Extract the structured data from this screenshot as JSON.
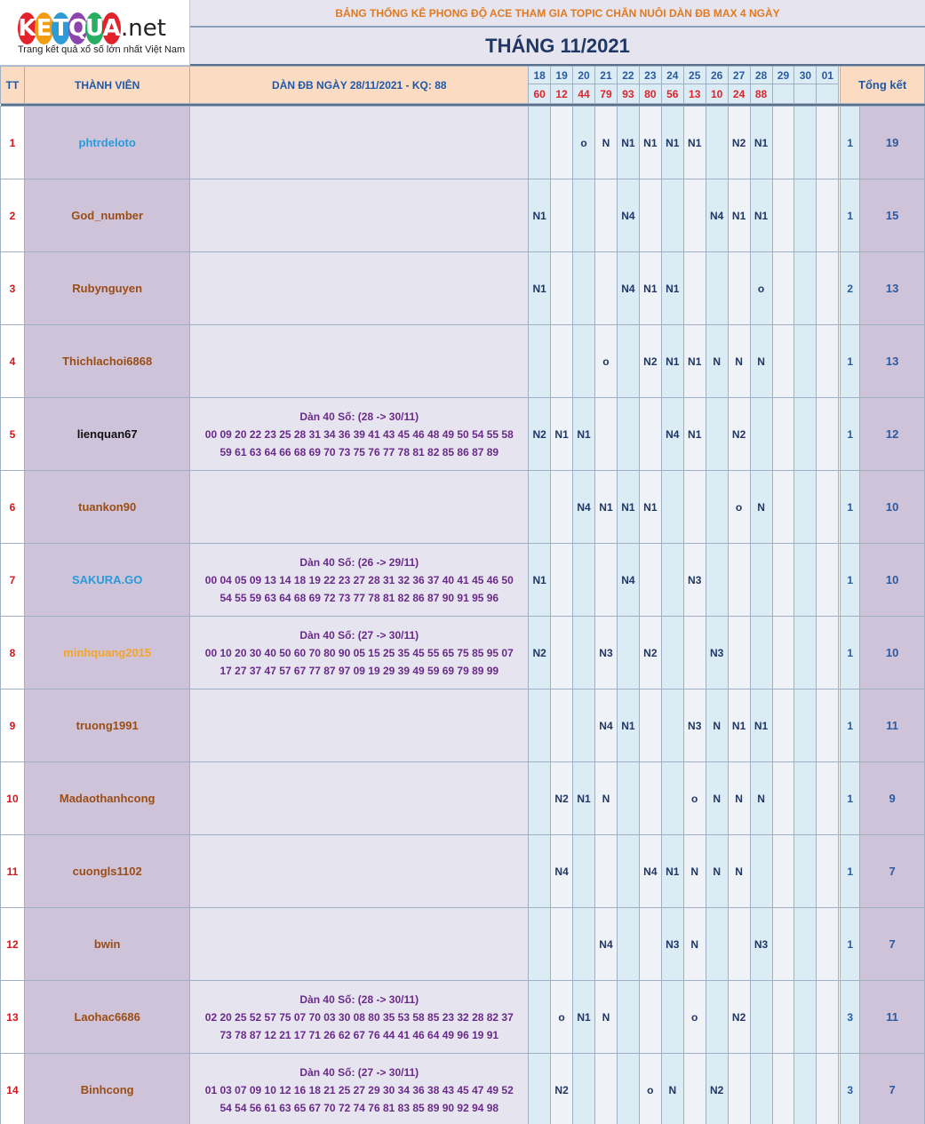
{
  "logo": {
    "letters": [
      "K",
      "E",
      "T",
      "Q",
      "U",
      "A"
    ],
    "letter_colors": [
      "#e2232b",
      "#f39c12",
      "#2e9bd6",
      "#8e44ad",
      "#27ae60",
      "#e2232b"
    ],
    "suffix": ".net",
    "tagline": "Trang kết quả xổ số lớn nhất Việt Nam"
  },
  "title": "BẢNG THỐNG KÊ PHONG ĐỘ ACE THAM GIA TOPIC CHĂN NUÔI DÀN ĐB MAX 4 NGÀY",
  "month": "THÁNG 11/2021",
  "headers": {
    "tt": "TT",
    "member": "THÀNH VIÊN",
    "dan": "DÀN ĐB NGÀY 28/11/2021 - KQ: 88",
    "summary": "Tổng kết"
  },
  "days": [
    "18",
    "19",
    "20",
    "21",
    "22",
    "23",
    "24",
    "25",
    "26",
    "27",
    "28",
    "29",
    "30",
    "01"
  ],
  "results": [
    "60",
    "12",
    "44",
    "79",
    "93",
    "80",
    "56",
    "13",
    "10",
    "24",
    "88",
    "",
    "",
    ""
  ],
  "member_colors": {
    "blue": "#2a9ad8",
    "brown": "#9a4d15",
    "black": "#111111",
    "orange": "#f2a52a"
  },
  "rows": [
    {
      "tt": "1",
      "name": "phtrdeloto",
      "color": "blue",
      "dan_title": "",
      "dan_lines": [],
      "cells": [
        "",
        "",
        "o",
        "N",
        "N1",
        "N1",
        "N1",
        "N1",
        "",
        "N2",
        "N1",
        "",
        "",
        ""
      ],
      "s1": "1",
      "s2": "19"
    },
    {
      "tt": "2",
      "name": "God_number",
      "color": "brown",
      "dan_title": "",
      "dan_lines": [],
      "cells": [
        "N1",
        "",
        "",
        "",
        "N4",
        "",
        "",
        "",
        "N4",
        "N1",
        "N1",
        "",
        "",
        ""
      ],
      "s1": "1",
      "s2": "15"
    },
    {
      "tt": "3",
      "name": "Rubynguyen",
      "color": "brown",
      "dan_title": "",
      "dan_lines": [],
      "cells": [
        "N1",
        "",
        "",
        "",
        "N4",
        "N1",
        "N1",
        "",
        "",
        "",
        "o",
        "",
        "",
        ""
      ],
      "s1": "2",
      "s2": "13"
    },
    {
      "tt": "4",
      "name": "Thichlachoi6868",
      "color": "brown",
      "dan_title": "",
      "dan_lines": [],
      "cells": [
        "",
        "",
        "",
        "o",
        "",
        "N2",
        "N1",
        "N1",
        "N",
        "N",
        "N",
        "",
        "",
        ""
      ],
      "s1": "1",
      "s2": "13"
    },
    {
      "tt": "5",
      "name": "lienquan67",
      "color": "black",
      "dan_title": "Dàn 40 Số: (28 -> 30/11)",
      "dan_lines": [
        "00 09 20 22 23 25 28 31 34 36 39 41 43 45 46 48 49 50 54 55 58",
        "59 61 63 64 66 68 69 70 73 75 76 77 78 81 82 85 86 87 89"
      ],
      "cells": [
        "N2",
        "N1",
        "N1",
        "",
        "",
        "",
        "N4",
        "N1",
        "",
        "N2",
        "",
        "",
        "",
        ""
      ],
      "s1": "1",
      "s2": "12"
    },
    {
      "tt": "6",
      "name": "tuankon90",
      "color": "brown",
      "dan_title": "",
      "dan_lines": [],
      "cells": [
        "",
        "",
        "N4",
        "N1",
        "N1",
        "N1",
        "",
        "",
        "",
        "o",
        "N",
        "",
        "",
        ""
      ],
      "s1": "1",
      "s2": "10"
    },
    {
      "tt": "7",
      "name": "SAKURA.GO",
      "color": "blue",
      "dan_title": "Dàn 40 Số: (26 -> 29/11)",
      "dan_lines": [
        "00 04 05 09 13 14 18 19 22 23 27 28 31 32 36 37 40 41 45 46 50",
        "54 55 59 63 64 68 69 72 73 77 78 81 82 86 87 90 91 95 96"
      ],
      "cells": [
        "N1",
        "",
        "",
        "",
        "N4",
        "",
        "",
        "N3",
        "",
        "",
        "",
        "",
        "",
        ""
      ],
      "s1": "1",
      "s2": "10"
    },
    {
      "tt": "8",
      "name": "minhquang2015",
      "color": "orange",
      "dan_title": "Dàn 40 Số: (27 -> 30/11)",
      "dan_lines": [
        "00 10 20 30 40 50 60 70 80 90 05 15 25 35 45 55 65 75 85 95 07",
        "17 27 37 47 57 67 77 87 97 09 19 29 39 49 59 69 79 89 99"
      ],
      "cells": [
        "N2",
        "",
        "",
        "N3",
        "",
        "N2",
        "",
        "",
        "N3",
        "",
        "",
        "",
        "",
        ""
      ],
      "s1": "1",
      "s2": "10"
    },
    {
      "tt": "9",
      "name": "truong1991",
      "color": "brown",
      "dan_title": "",
      "dan_lines": [],
      "cells": [
        "",
        "",
        "",
        "N4",
        "N1",
        "",
        "",
        "N3",
        "N",
        "N1",
        "N1",
        "",
        "",
        ""
      ],
      "s1": "1",
      "s2": "11"
    },
    {
      "tt": "10",
      "name": "Madaothanhcong",
      "color": "brown",
      "dan_title": "",
      "dan_lines": [],
      "cells": [
        "",
        "N2",
        "N1",
        "N",
        "",
        "",
        "",
        "o",
        "N",
        "N",
        "N",
        "",
        "",
        ""
      ],
      "s1": "1",
      "s2": "9"
    },
    {
      "tt": "11",
      "name": "cuongls1102",
      "color": "brown",
      "dan_title": "",
      "dan_lines": [],
      "cells": [
        "",
        "N4",
        "",
        "",
        "",
        "N4",
        "N1",
        "N",
        "N",
        "N",
        "",
        "",
        "",
        ""
      ],
      "s1": "1",
      "s2": "7"
    },
    {
      "tt": "12",
      "name": "bwin",
      "color": "brown",
      "dan_title": "",
      "dan_lines": [],
      "cells": [
        "",
        "",
        "",
        "N4",
        "",
        "",
        "N3",
        "N",
        "",
        "",
        "N3",
        "",
        "",
        ""
      ],
      "s1": "1",
      "s2": "7"
    },
    {
      "tt": "13",
      "name": "Laohac6686",
      "color": "brown",
      "dan_title": "Dàn 40 Số: (28 -> 30/11)",
      "dan_lines": [
        "02 20 25 52 57 75 07 70 03 30 08 80 35 53 58 85 23 32 28 82 37",
        "73 78 87 12 21 17 71 26 62 67 76 44 41 46 64 49 96 19 91"
      ],
      "cells": [
        "",
        "o",
        "N1",
        "N",
        "",
        "",
        "",
        "o",
        "",
        "N2",
        "",
        "",
        "",
        ""
      ],
      "s1": "3",
      "s2": "11"
    },
    {
      "tt": "14",
      "name": "Binhcong",
      "color": "brown",
      "dan_title": "Dàn 40 Số: (27 -> 30/11)",
      "dan_lines": [
        "01 03 07 09 10 12 16 18 21 25 27 29 30 34 36 38 43 45 47 49 52",
        "54 54 56 61 63 65 67 70 72 74 76 81 83 85 89 90 92 94 98"
      ],
      "cells": [
        "",
        "N2",
        "",
        "",
        "",
        "o",
        "N",
        "",
        "N2",
        "",
        "",
        "",
        "",
        ""
      ],
      "s1": "3",
      "s2": "7"
    }
  ]
}
